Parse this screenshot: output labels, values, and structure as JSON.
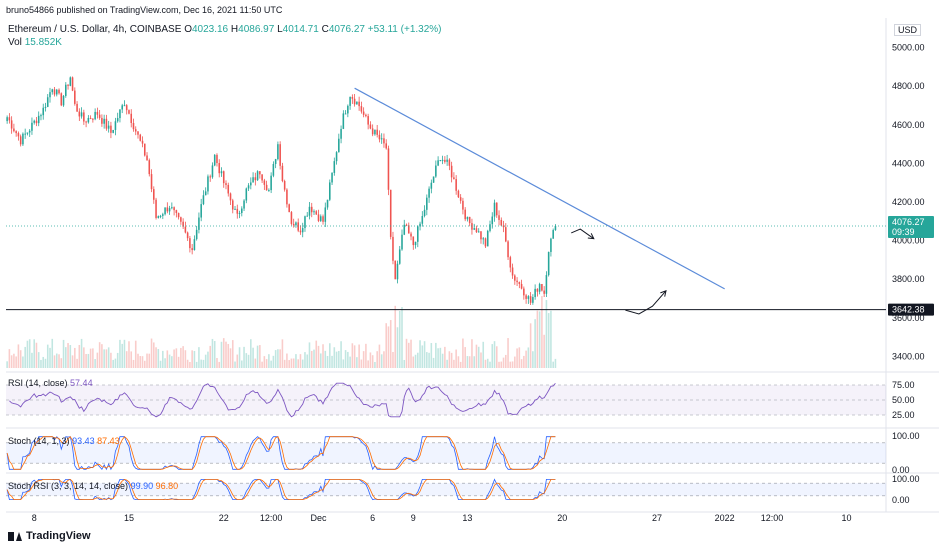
{
  "publisher_line": "bruno54866 published on TradingView.com, Dec 16, 2021 11:50 UTC",
  "currency": "USD",
  "symbol": {
    "name": "Ethereum / U.S. Dollar, 4h, COINBASE",
    "o_label": "O",
    "o": "4023.16",
    "h_label": "H",
    "h": "4086.97",
    "l_label": "L",
    "l": "4014.71",
    "c_label": "C",
    "c": "4076.27",
    "change": "+53.11 (+1.32%)"
  },
  "volume": {
    "label": "Vol",
    "value": "15.852K"
  },
  "indicators": {
    "rsi": {
      "label": "RSI (14, close)",
      "value": "57.44",
      "axis": [
        "75.00",
        "50.00",
        "25.00"
      ]
    },
    "stoch": {
      "label": "Stoch (14, 1, 3)",
      "k": "93.43",
      "d": "87.43",
      "axis": [
        "100.00",
        "0.00"
      ]
    },
    "stoch_rsi": {
      "label": "Stoch RSI (3, 3, 14, 14, close)",
      "k": "99.90",
      "d": "96.80",
      "axis": [
        "100.00",
        "0.00"
      ]
    }
  },
  "price_labels": {
    "last": "4076.27",
    "countdown": "09:39",
    "support": "3642.38"
  },
  "brand": "TradingView",
  "colors": {
    "up": "#26a69a",
    "down": "#ef5350",
    "trendline": "#5b8bd9",
    "support": "#131722",
    "rsi": "#7e57c2",
    "stoch_k": "#2962ff",
    "stoch_d": "#ff6d00"
  },
  "chart_data": {
    "type": "candlestick",
    "title": "Ethereum / U.S. Dollar, 4h, COINBASE",
    "y_axis_labels": [
      "5000.00",
      "4800.00",
      "4600.00",
      "4400.00",
      "4200.00",
      "4000.00",
      "3800.00",
      "3600.00",
      "3400.00"
    ],
    "y_ticks": [
      5000,
      4800,
      4600,
      4400,
      4200,
      4000,
      3800,
      3600,
      3400
    ],
    "ylim": [
      3340,
      5050
    ],
    "x_ticks": [
      {
        "label": "8",
        "i": 12
      },
      {
        "label": "15",
        "i": 54
      },
      {
        "label": "22",
        "i": 96
      },
      {
        "label": "12:00",
        "i": 117
      },
      {
        "label": "Dec",
        "i": 138
      },
      {
        "label": "6",
        "i": 162
      },
      {
        "label": "9",
        "i": 180
      },
      {
        "label": "13",
        "i": 204
      },
      {
        "label": "20",
        "i": 246
      },
      {
        "label": "27",
        "i": 288
      },
      {
        "label": "2022",
        "i": 318
      },
      {
        "label": "12:00",
        "i": 339
      },
      {
        "label": "10",
        "i": 372
      }
    ],
    "x_count": 390,
    "anchors": [
      [
        0,
        4640
      ],
      [
        6,
        4520
      ],
      [
        10,
        4580
      ],
      [
        16,
        4680
      ],
      [
        20,
        4800
      ],
      [
        24,
        4720
      ],
      [
        28,
        4850
      ],
      [
        30,
        4700
      ],
      [
        34,
        4620
      ],
      [
        40,
        4660
      ],
      [
        46,
        4560
      ],
      [
        52,
        4720
      ],
      [
        56,
        4600
      ],
      [
        62,
        4420
      ],
      [
        66,
        4120
      ],
      [
        72,
        4180
      ],
      [
        78,
        4060
      ],
      [
        82,
        3960
      ],
      [
        86,
        4180
      ],
      [
        92,
        4440
      ],
      [
        96,
        4300
      ],
      [
        102,
        4120
      ],
      [
        106,
        4260
      ],
      [
        112,
        4360
      ],
      [
        116,
        4260
      ],
      [
        120,
        4500
      ],
      [
        122,
        4320
      ],
      [
        126,
        4100
      ],
      [
        130,
        4060
      ],
      [
        134,
        4180
      ],
      [
        140,
        4100
      ],
      [
        144,
        4340
      ],
      [
        148,
        4600
      ],
      [
        152,
        4760
      ],
      [
        156,
        4700
      ],
      [
        160,
        4600
      ],
      [
        164,
        4540
      ],
      [
        168,
        4480
      ],
      [
        170,
        4000
      ],
      [
        172,
        3800
      ],
      [
        176,
        4080
      ],
      [
        180,
        3980
      ],
      [
        184,
        4120
      ],
      [
        188,
        4300
      ],
      [
        192,
        4440
      ],
      [
        196,
        4380
      ],
      [
        200,
        4240
      ],
      [
        204,
        4100
      ],
      [
        208,
        4060
      ],
      [
        212,
        3980
      ],
      [
        216,
        4180
      ],
      [
        220,
        4050
      ],
      [
        224,
        3820
      ],
      [
        228,
        3760
      ],
      [
        232,
        3680
      ],
      [
        236,
        3780
      ],
      [
        238,
        3730
      ],
      [
        240,
        3960
      ],
      [
        243,
        4076
      ]
    ],
    "trendline": [
      [
        154,
        4790
      ],
      [
        318,
        3750
      ]
    ],
    "support_level": 3642.38,
    "annotations": [
      {
        "shape": "arrow-down",
        "points": [
          [
            250,
            4040
          ],
          [
            254,
            4060
          ],
          [
            260,
            4010
          ]
        ]
      },
      {
        "shape": "arrow-up",
        "points": [
          [
            274,
            3640
          ],
          [
            280,
            3620
          ],
          [
            286,
            3660
          ],
          [
            292,
            3740
          ]
        ]
      }
    ]
  }
}
